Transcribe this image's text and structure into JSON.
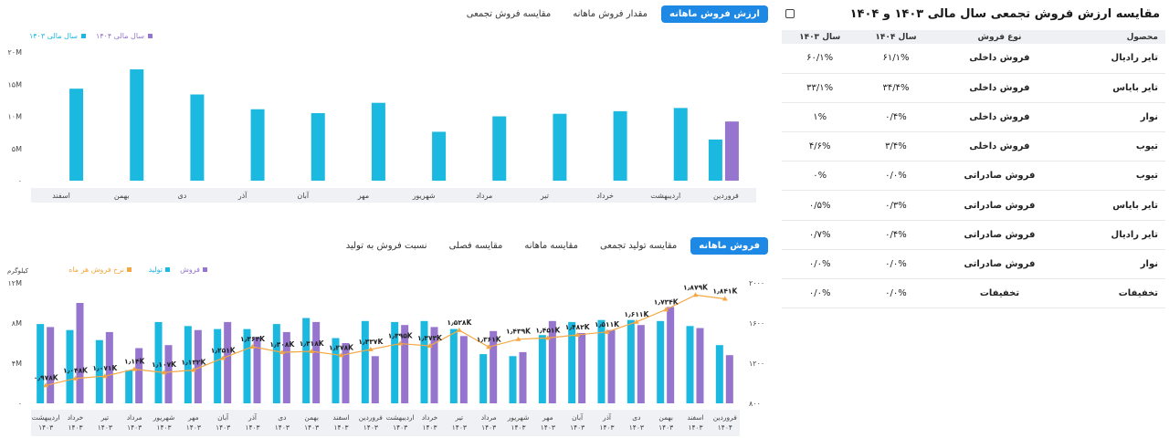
{
  "top_tabs": [
    {
      "label": "ارزش فروش ماهانه",
      "active": true
    },
    {
      "label": "مقدار فروش ماهانه",
      "active": false
    },
    {
      "label": "مقایسه فروش تجمعی",
      "active": false
    }
  ],
  "bottom_tabs": [
    {
      "label": "فروش ماهانه",
      "active": true
    },
    {
      "label": "مقایسه تولید تجمعی",
      "active": false
    },
    {
      "label": "مقایسه ماهانه",
      "active": false
    },
    {
      "label": "مقایسه فصلی",
      "active": false
    },
    {
      "label": "نسبت فروش به تولید",
      "active": false
    }
  ],
  "colors": {
    "cyan": "#1BB8E0",
    "purple": "#9575CD",
    "orange": "#F5A742",
    "accent": "#1E88E5"
  },
  "panel": {
    "title": "مقایسه ارزش فروش تجمعی سال مالی ۱۴۰۳ و ۱۴۰۴",
    "icon": "export-icon",
    "headers": [
      "محصول",
      "نوع فروش",
      "سال ۱۴۰۴",
      "سال ۱۴۰۳"
    ],
    "rows": [
      [
        "تایر رادیال",
        "فروش داخلی",
        "۶۱/۱%",
        "۶۰/۱%"
      ],
      [
        "تایر بایاس",
        "فروش داخلی",
        "۳۴/۴%",
        "۳۳/۱%"
      ],
      [
        "نوار",
        "فروش داخلی",
        "۰/۴%",
        "۱%"
      ],
      [
        "تیوب",
        "فروش داخلی",
        "۳/۴%",
        "۴/۶%"
      ],
      [
        "تیوب",
        "فروش صادراتی",
        "۰/۰%",
        "۰%"
      ],
      [
        "تایر بایاس",
        "فروش صادراتی",
        "۰/۳%",
        "۰/۵%"
      ],
      [
        "تایر رادیال",
        "فروش صادراتی",
        "۰/۴%",
        "۰/۷%"
      ],
      [
        "نوار",
        "فروش صادراتی",
        "۰/۰%",
        "۰/۰%"
      ],
      [
        "تخفیفات",
        "تخفیفات",
        "۰/۰%",
        "۰/۰%"
      ]
    ]
  },
  "chart_data": [
    {
      "type": "bar",
      "legend": [
        "سال مالی ۱۴۰۴",
        "سال مالی ۱۴۰۳"
      ],
      "legend_placement": "top-left",
      "y_ticks": [
        "۲۰M",
        "۱۵M",
        "۱۰M",
        "۵M",
        "۰"
      ],
      "ylim": [
        0,
        20000000
      ],
      "categories": [
        "فروردین",
        "اردیبهشت",
        "خرداد",
        "تیر",
        "مرداد",
        "شهریور",
        "مهر",
        "آبان",
        "آذر",
        "دی",
        "بهمن",
        "اسفند"
      ],
      "series": [
        {
          "name": "سال مالی ۱۴۰۳",
          "color": "#1BB8E0",
          "values": [
            6400000,
            11300000,
            10800000,
            10400000,
            10000000,
            7600000,
            12100000,
            10500000,
            11100000,
            13400000,
            17300000,
            14300000
          ]
        },
        {
          "name": "سال مالی ۱۴۰۴",
          "color": "#9575CD",
          "values": [
            9200000,
            null,
            null,
            null,
            null,
            null,
            null,
            null,
            null,
            null,
            null,
            null
          ]
        }
      ],
      "grid": false
    },
    {
      "type": "bar",
      "legend": [
        "فروش",
        "تولید",
        "نرخ فروش هر ماه"
      ],
      "legend_placement": "top-right",
      "y_left_title": "کیلوگرم",
      "y_left_ticks": [
        "۱۲M",
        "۸M",
        "۴M",
        "۰"
      ],
      "y_left_lim": [
        0,
        12000000
      ],
      "y_right_ticks": [
        "۲۰۰۰",
        "۱۶۰۰",
        "۱۲۰۰",
        "۸۰۰"
      ],
      "y_right_lim": [
        800,
        2000
      ],
      "categories": [
        {
          "month": "اردیبهشت",
          "year": "۱۴۰۳"
        },
        {
          "month": "خرداد",
          "year": "۱۴۰۳"
        },
        {
          "month": "تیر",
          "year": "۱۴۰۳"
        },
        {
          "month": "مرداد",
          "year": "۱۴۰۳"
        },
        {
          "month": "شهریور",
          "year": "۱۴۰۳"
        },
        {
          "month": "مهر",
          "year": "۱۴۰۳"
        },
        {
          "month": "آبان",
          "year": "۱۴۰۳"
        },
        {
          "month": "آذر",
          "year": "۱۴۰۳"
        },
        {
          "month": "دی",
          "year": "۱۴۰۳"
        },
        {
          "month": "بهمن",
          "year": "۱۴۰۳"
        },
        {
          "month": "اسفند",
          "year": "۱۴۰۳"
        },
        {
          "month": "فروردین",
          "year": "۱۴۰۳"
        },
        {
          "month": "اردیبهشت",
          "year": "۱۴۰۳"
        },
        {
          "month": "خرداد",
          "year": "۱۴۰۳"
        },
        {
          "month": "تیر",
          "year": "۱۴۰۳"
        },
        {
          "month": "مرداد",
          "year": "۱۴۰۳"
        },
        {
          "month": "شهریور",
          "year": "۱۴۰۳"
        },
        {
          "month": "مهر",
          "year": "۱۴۰۳"
        },
        {
          "month": "آبان",
          "year": "۱۴۰۳"
        },
        {
          "month": "آذر",
          "year": "۱۴۰۳"
        },
        {
          "month": "دی",
          "year": "۱۴۰۳"
        },
        {
          "month": "بهمن",
          "year": "۱۴۰۳"
        },
        {
          "month": "اسفند",
          "year": "۱۴۰۳"
        },
        {
          "month": "فروردین",
          "year": "۱۴۰۴"
        }
      ],
      "series": [
        {
          "name": "تولید",
          "color": "#1BB8E0",
          "values": [
            7900000,
            7300000,
            6300000,
            3300000,
            8100000,
            7700000,
            7400000,
            7400000,
            7900000,
            8500000,
            6500000,
            8200000,
            8100000,
            8200000,
            7400000,
            4900000,
            4700000,
            6800000,
            8100000,
            8300000,
            8300000,
            8200000,
            7700000,
            5800000
          ]
        },
        {
          "name": "فروش",
          "color": "#9575CD",
          "values": [
            7600000,
            10000000,
            7100000,
            5500000,
            5800000,
            7300000,
            8100000,
            6600000,
            7100000,
            8100000,
            6000000,
            4700000,
            7800000,
            7600000,
            6700000,
            7200000,
            5100000,
            8200000,
            7000000,
            7300000,
            7800000,
            9600000,
            7500000,
            4800000
          ]
        },
        {
          "name": "نرخ فروش هر ماه",
          "color": "#F5A742",
          "values": [
            978,
            1048,
            1071,
            1140,
            1107,
            1132,
            1251,
            1364,
            1308,
            1318,
            1278,
            1337,
            1395,
            1373,
            1528,
            1361,
            1439,
            1451,
            1482,
            1511,
            1611,
            1734,
            1879,
            1841
          ],
          "labels": [
            "۰٫۹۷۸K",
            "۱٫۰۴۸K",
            "۱٫۰۷۱K",
            "۱٫۱۴K",
            "۱٫۱۰۷K",
            "۱٫۱۳۲K",
            "۱٫۲۵۱K",
            "۱٫۳۶۴K",
            "۱٫۳۰۸K",
            "۱٫۳۱۸K",
            "۱٫۲۷۸K",
            "۱٫۳۳۷K",
            "۱٫۳۹۵K",
            "۱٫۳۷۳K",
            "۱٫۵۲۸K",
            "۱٫۳۶۱K",
            "۱٫۴۳۹K",
            "۱٫۴۵۱K",
            "۱٫۴۸۲K",
            "۱٫۵۱۱K",
            "۱٫۶۱۱K",
            "۱٫۷۳۴K",
            "۱٫۸۷۹K",
            "۱٫۸۴۱K"
          ]
        }
      ],
      "grid": false
    }
  ]
}
